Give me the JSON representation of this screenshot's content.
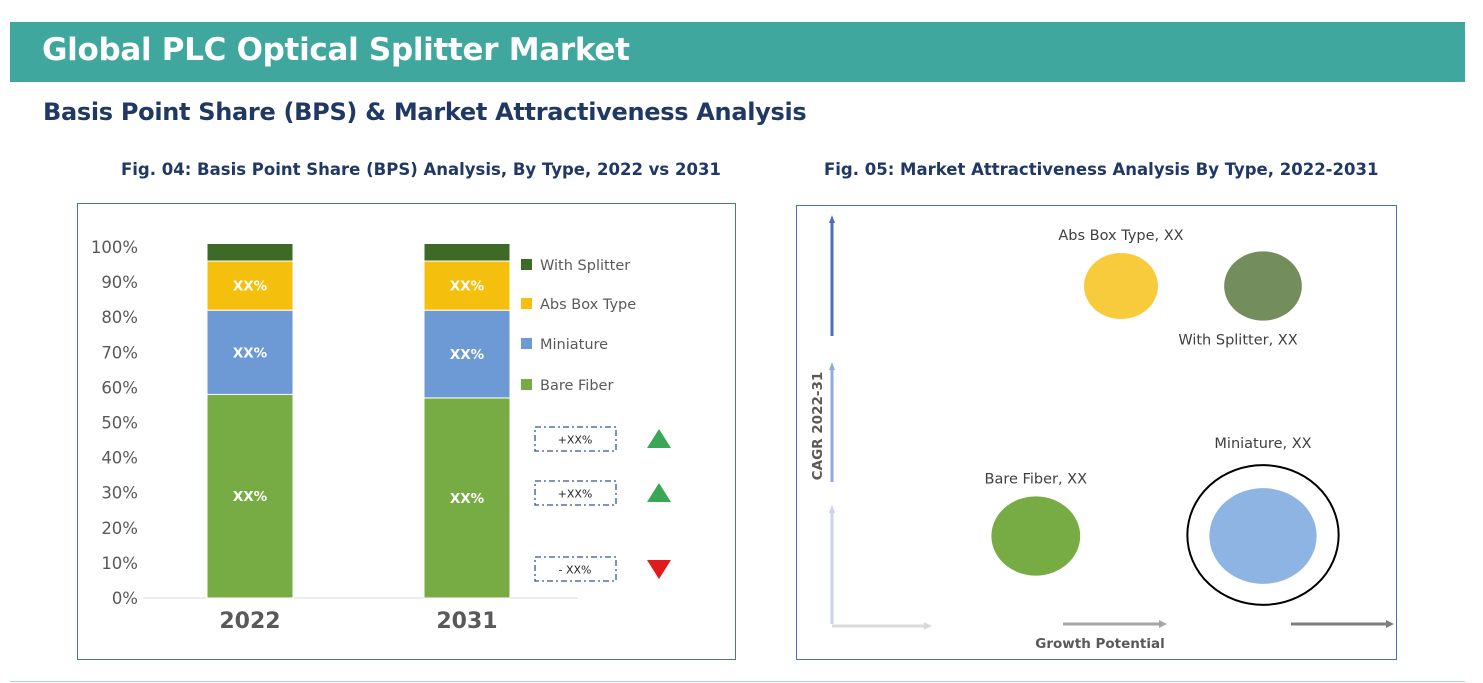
{
  "header": {
    "title": "Global PLC Optical Splitter Market",
    "subtitle": "Basis Point Share (BPS) & Market Attractiveness Analysis"
  },
  "colors": {
    "banner": "#3fa79e",
    "heading": "#1f3864",
    "bare_fiber": "#76ac43",
    "miniature": "#6d9ad5",
    "abs_box": "#f5bf0e",
    "with_splitter": "#3e6a27",
    "up_arrow": "#3aa757",
    "down_arrow": "#e11b1b"
  },
  "chart_data": [
    {
      "type": "bar",
      "stacked": true,
      "title": "Fig. 04: Basis Point Share (BPS) Analysis, By Type, 2022 vs 2031",
      "categories": [
        "2022",
        "2031"
      ],
      "ylim": [
        0,
        100
      ],
      "y_ticks": [
        "0%",
        "10%",
        "20%",
        "30%",
        "40%",
        "50%",
        "60%",
        "70%",
        "80%",
        "90%",
        "100%"
      ],
      "series": [
        {
          "name": "Bare Fiber",
          "values": [
            58,
            57
          ],
          "labels": [
            "XX%",
            "XX%"
          ]
        },
        {
          "name": "Miniature",
          "values": [
            24,
            25
          ],
          "labels": [
            "XX%",
            "XX%"
          ]
        },
        {
          "name": "Abs Box Type",
          "values": [
            14,
            14
          ],
          "labels": [
            "XX%",
            "XX%"
          ]
        },
        {
          "name": "With Splitter",
          "values": [
            5,
            5
          ],
          "labels": [
            "",
            ""
          ]
        }
      ],
      "legend_order": [
        "With Splitter",
        "Abs Box Type",
        "Miniature",
        "Bare Fiber"
      ],
      "legend_position": "right",
      "bps_changes": [
        {
          "text": "+XX%",
          "direction": "up"
        },
        {
          "text": "+XX%",
          "direction": "up"
        },
        {
          "text": "- XX%",
          "direction": "down"
        }
      ]
    },
    {
      "type": "scatter",
      "bubble": true,
      "title": "Fig. 05: Market Attractiveness Analysis By Type, 2022-2031",
      "xlabel": "Growth Potential",
      "ylabel": "CAGR 2022-31",
      "points": [
        {
          "label": "Abs Box Type, XX",
          "x": 2,
          "y": 3,
          "size": 1.0,
          "color": "#f8cb3c"
        },
        {
          "label": "With Splitter, XX",
          "x": 3,
          "y": 3,
          "size": 1.05,
          "color": "#738d5c"
        },
        {
          "label": "Bare Fiber, XX",
          "x": 1.4,
          "y": 1,
          "size": 1.2,
          "color": "#76ac43"
        },
        {
          "label": "Miniature, XX",
          "x": 3,
          "y": 1,
          "size": 1.45,
          "color": "#8eb4e3",
          "highlighted": true
        }
      ]
    }
  ]
}
